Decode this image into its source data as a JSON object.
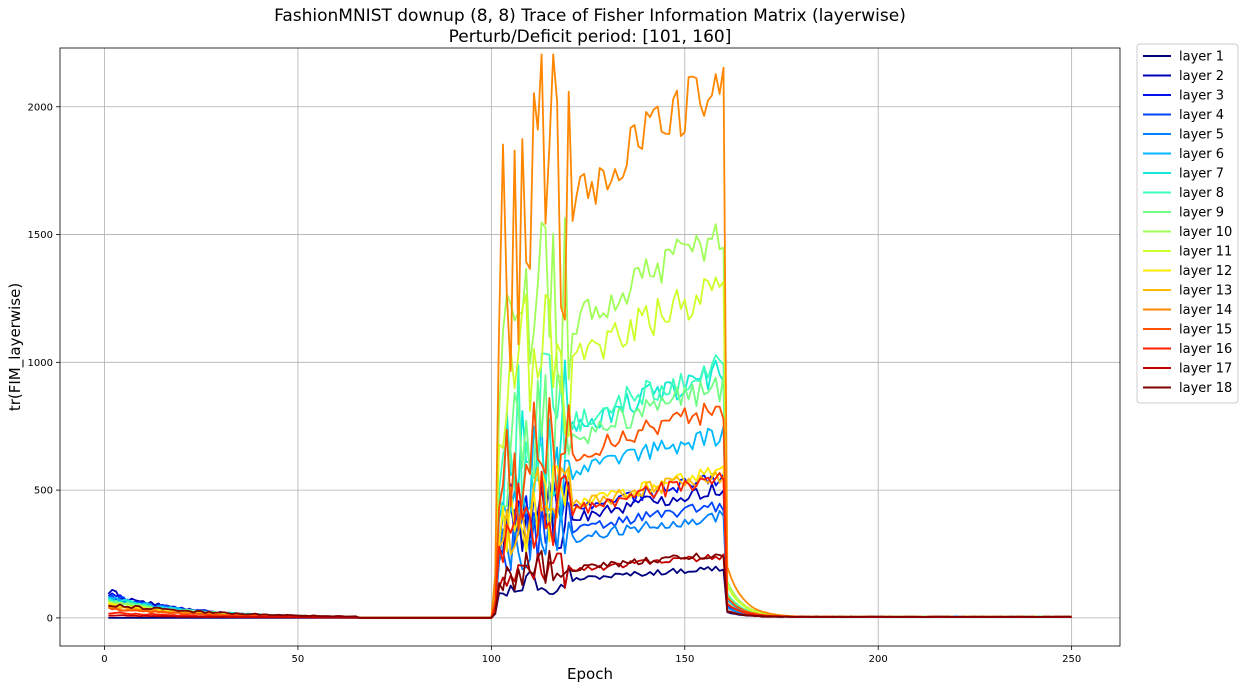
{
  "chart_data": {
    "type": "line",
    "title": "FashionMNIST downup (8, 8) Trace of Fisher Information Matrix (layerwise)",
    "subtitle": "Perturb/Deficit period: [101, 160]",
    "xlabel": "Epoch",
    "ylabel": "tr(FIM_layerwise)",
    "xlim": [
      -11.5,
      262.5
    ],
    "ylim": [
      -110,
      2230
    ],
    "xticks": [
      0,
      50,
      100,
      150,
      200,
      250
    ],
    "yticks": [
      0,
      500,
      1000,
      1500,
      2000
    ],
    "grid": true,
    "legend_position": "outside-right",
    "perturb_period": [
      101,
      160
    ],
    "series": [
      {
        "name": "layer 1",
        "color": "#00007f",
        "pre": 0,
        "peak": 195
      },
      {
        "name": "layer 2",
        "color": "#0000b5",
        "pre": 100,
        "peak": 505
      },
      {
        "name": "layer 3",
        "color": "#0010ee",
        "pre": 90,
        "peak": 545
      },
      {
        "name": "layer 4",
        "color": "#0045ff",
        "pre": 85,
        "peak": 440
      },
      {
        "name": "layer 5",
        "color": "#0082ff",
        "pre": 80,
        "peak": 400
      },
      {
        "name": "layer 6",
        "color": "#00b8ff",
        "pre": 80,
        "peak": 720
      },
      {
        "name": "layer 7",
        "color": "#10ead6",
        "pre": 75,
        "peak": 960
      },
      {
        "name": "layer 8",
        "color": "#3dffb9",
        "pre": 70,
        "peak": 985
      },
      {
        "name": "layer 9",
        "color": "#72ff85",
        "pre": 65,
        "peak": 905
      },
      {
        "name": "layer 10",
        "color": "#a0ff56",
        "pre": 60,
        "peak": 1490
      },
      {
        "name": "layer 11",
        "color": "#cdff29",
        "pre": 55,
        "peak": 1295
      },
      {
        "name": "layer 12",
        "color": "#ffea00",
        "pre": 50,
        "peak": 565
      },
      {
        "name": "layer 13",
        "color": "#ffb900",
        "pre": 45,
        "peak": 560
      },
      {
        "name": "layer 14",
        "color": "#ff8700",
        "pre": 40,
        "peak": 2100
      },
      {
        "name": "layer 15",
        "color": "#ff5100",
        "pre": 35,
        "peak": 820
      },
      {
        "name": "layer 16",
        "color": "#ff1f00",
        "pre": 20,
        "peak": 545
      },
      {
        "name": "layer 17",
        "color": "#c10000",
        "pre": 10,
        "peak": 240
      },
      {
        "name": "layer 18",
        "color": "#7f0000",
        "pre": 55,
        "peak": 250
      }
    ]
  }
}
